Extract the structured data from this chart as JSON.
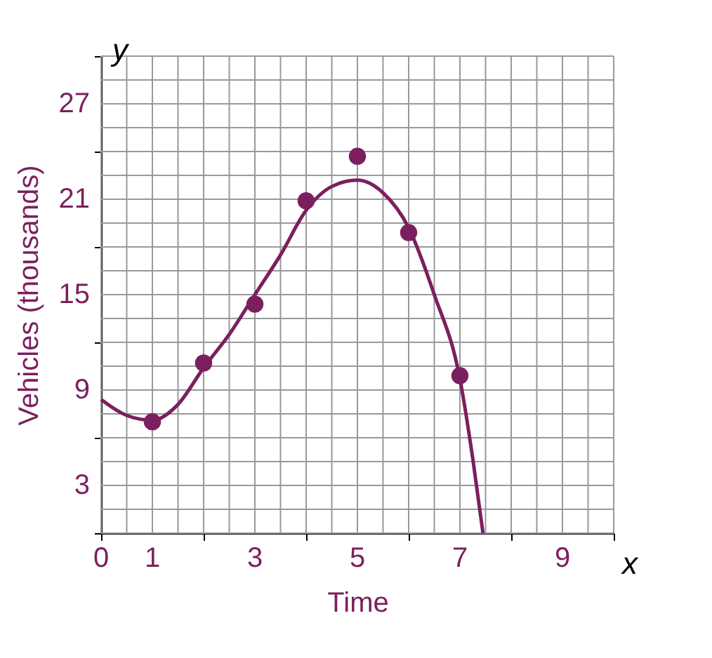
{
  "chart_data": {
    "type": "scatter",
    "xlabel": "Time",
    "ylabel": "Vehicles (thousands)",
    "annotations": [
      "x",
      "y"
    ],
    "xlim": [
      0,
      10
    ],
    "ylim": [
      0,
      30
    ],
    "xticks": [
      0,
      1,
      {
        "value": 2,
        "label": null
      },
      3,
      {
        "value": 4,
        "label": null
      },
      5,
      {
        "value": 6,
        "label": null
      },
      7,
      {
        "value": 8,
        "label": null
      },
      9,
      {
        "value": 10,
        "label": null
      }
    ],
    "yticks": [
      {
        "value": 0,
        "label": null
      },
      3,
      {
        "value": 6,
        "label": null
      },
      9,
      {
        "value": 12,
        "label": null
      },
      15,
      {
        "value": 18,
        "label": null
      },
      21,
      {
        "value": 24,
        "label": null
      },
      27,
      {
        "value": 30,
        "label": null
      }
    ],
    "grid": true,
    "marker": "circle",
    "series": [
      {
        "color": "#7b1f5e",
        "x": [
          1,
          2,
          3,
          4,
          5,
          6,
          7
        ],
        "values": [
          7,
          10.7,
          14.4,
          20.9,
          23.7,
          18.9,
          9.9
        ]
      },
      {
        "type": "line",
        "color": "#7b1f5e",
        "marker": "none",
        "x": [
          0,
          0.5,
          1,
          1.5,
          2,
          2.5,
          3,
          3.5,
          4,
          4.5,
          5,
          5.5,
          6,
          6.5,
          7,
          7.25,
          7.45
        ],
        "values": [
          8.4,
          7.4,
          7.1,
          8.1,
          10.4,
          12.5,
          15,
          17.5,
          20.3,
          21.8,
          22.2,
          21.4,
          19.2,
          15,
          9.7,
          4.7,
          0
        ]
      }
    ]
  }
}
